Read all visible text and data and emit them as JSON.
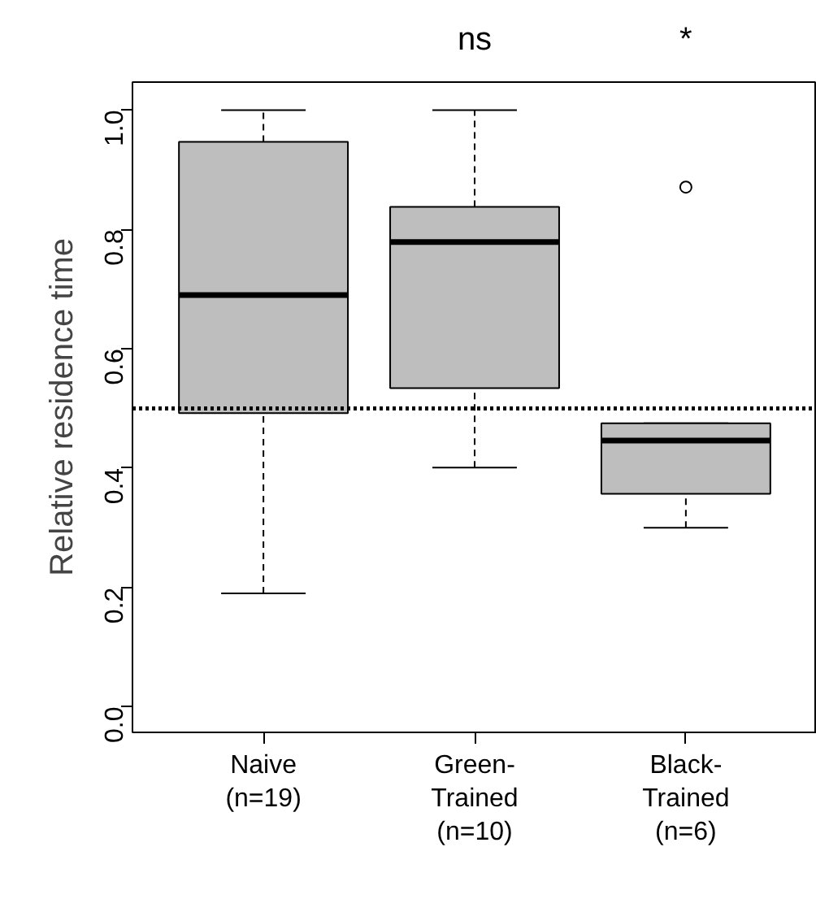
{
  "chart_data": {
    "type": "box",
    "ylabel": "Relative residence time",
    "categories": [
      "Naive\n(n=19)",
      "Green-\nTrained\n(n=10)",
      "Black-\nTrained\n(n=6)"
    ],
    "series": [
      {
        "color": "#bebebe",
        "boxes": [
          {
            "low": 0.19,
            "q1": 0.492,
            "median": 0.69,
            "q3": 0.947,
            "high": 1.0
          },
          {
            "low": 0.401,
            "q1": 0.534,
            "median": 0.779,
            "q3": 0.838,
            "high": 1.0
          },
          {
            "low": 0.3,
            "q1": 0.357,
            "median": 0.446,
            "q3": 0.475,
            "high": 0.475,
            "outliers": [
              0.871
            ]
          }
        ]
      }
    ],
    "ylim": [
      -0.043,
      1.047
    ],
    "yticks": [
      {
        "value": 0,
        "label": "0.0"
      },
      0.2,
      0.4,
      0.6,
      0.8,
      {
        "value": 1,
        "label": "1.0"
      }
    ],
    "ref_lines": [
      {
        "axis": "y",
        "value": 0.5,
        "line_style": "dotted",
        "color": "#000000"
      }
    ],
    "annotations": [
      "ns",
      "*"
    ]
  }
}
